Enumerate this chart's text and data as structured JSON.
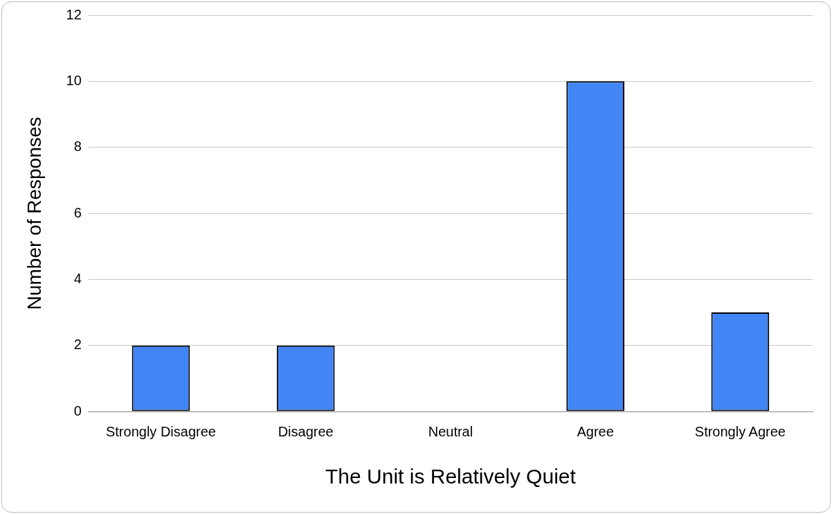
{
  "chart_data": {
    "type": "bar",
    "xlabel": "The Unit is Relatively Quiet",
    "ylabel": "Number of Responses",
    "categories": [
      "Strongly Disagree",
      "Disagree",
      "Neutral",
      "Agree",
      "Strongly Agree"
    ],
    "values": [
      2,
      2,
      0,
      10,
      3
    ],
    "color": "#4285f4",
    "ylim": [
      0,
      12
    ],
    "yticks": [
      0,
      2,
      4,
      6,
      8,
      10,
      12
    ],
    "grid": "y",
    "legend": false
  }
}
